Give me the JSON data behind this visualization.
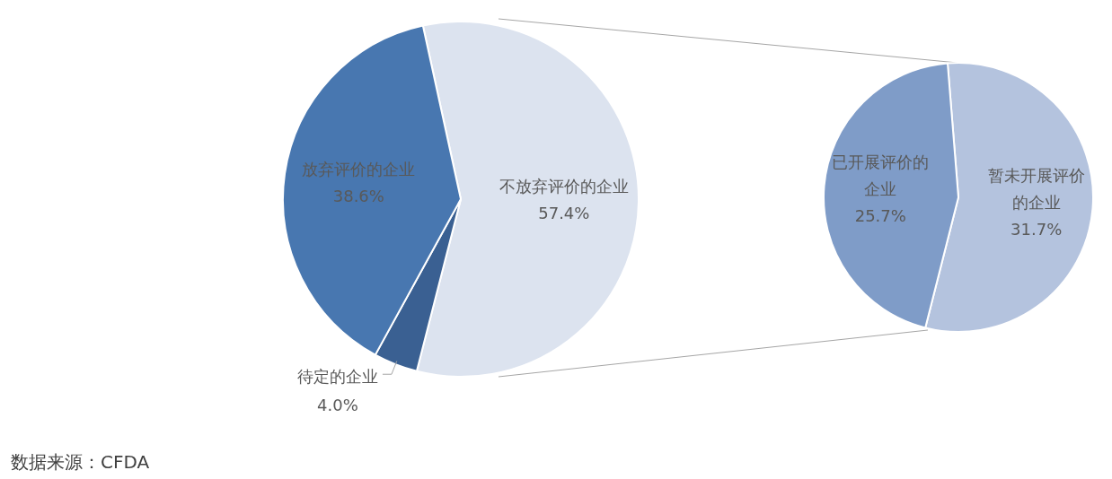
{
  "chart_data": [
    {
      "type": "pie",
      "categories": [
        "不放弃评价的企业",
        "待定的企业",
        "放弃评价的企业"
      ],
      "values": [
        57.4,
        4.0,
        38.6
      ],
      "value_labels": [
        "57.4%",
        "4.0%",
        "38.6%"
      ],
      "colors": [
        "#dce3ef",
        "#3a6092",
        "#4877b0"
      ],
      "annotations": [
        "数据来源：CFDA"
      ]
    },
    {
      "type": "pie",
      "categories": [
        "暂未开展评价的企业",
        "已开展评价的企业"
      ],
      "values": [
        31.7,
        25.7
      ],
      "value_labels": [
        "31.7%",
        "25.7%"
      ],
      "colors": [
        "#b4c3de",
        "#7f9cc8"
      ]
    }
  ]
}
